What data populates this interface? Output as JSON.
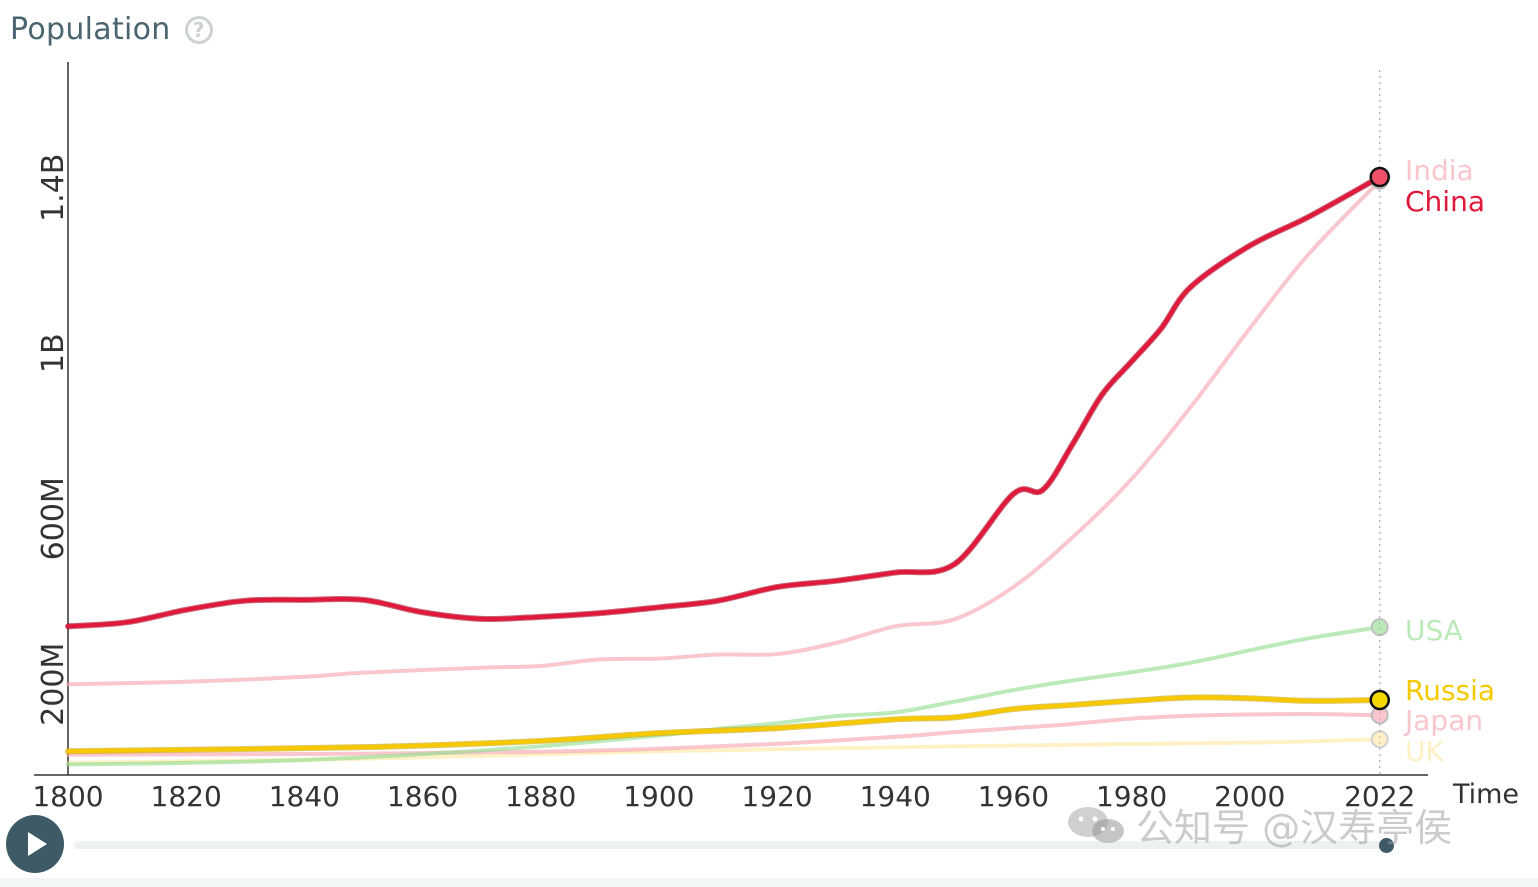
{
  "header": {
    "title": "Population",
    "help_icon": "question-circle-icon"
  },
  "chart_data": {
    "type": "line",
    "title": "Population",
    "xlabel": "Time",
    "ylabel": "",
    "xlim": [
      1800,
      2030
    ],
    "ylim": [
      0,
      1700000000
    ],
    "x_ticks": [
      1800,
      1820,
      1840,
      1860,
      1880,
      1900,
      1920,
      1940,
      1960,
      1980,
      2000
    ],
    "x_tick_last_label": "2022",
    "y_ticks": [
      {
        "value": 200000000,
        "label": "200M"
      },
      {
        "value": 600000000,
        "label": "600M"
      },
      {
        "value": 1000000000,
        "label": "1B"
      },
      {
        "value": 1400000000,
        "label": "1.4B"
      }
    ],
    "grid": false,
    "legend": "end-labels",
    "current_year": 2022,
    "series": [
      {
        "name": "UK",
        "color": "#ffdf80",
        "opacity": 0.45,
        "highlight": false,
        "points": [
          [
            1800,
            10000000
          ],
          [
            1850,
            20000000
          ],
          [
            1900,
            38000000
          ],
          [
            1950,
            50000000
          ],
          [
            2000,
            59000000
          ],
          [
            2022,
            67000000
          ]
        ]
      },
      {
        "name": "Japan",
        "color": "#f7a9b4",
        "opacity": 0.65,
        "highlight": false,
        "points": [
          [
            1800,
            30000000
          ],
          [
            1850,
            32000000
          ],
          [
            1880,
            37000000
          ],
          [
            1900,
            44000000
          ],
          [
            1920,
            56000000
          ],
          [
            1940,
            73000000
          ],
          [
            1950,
            84000000
          ],
          [
            1960,
            94000000
          ],
          [
            1970,
            104000000
          ],
          [
            1980,
            117000000
          ],
          [
            1990,
            124000000
          ],
          [
            2000,
            127000000
          ],
          [
            2010,
            128000000
          ],
          [
            2022,
            125000000
          ]
        ]
      },
      {
        "name": "USA",
        "color": "#8fdc8a",
        "opacity": 0.6,
        "highlight": false,
        "points": [
          [
            1800,
            6000000
          ],
          [
            1820,
            10000000
          ],
          [
            1840,
            17000000
          ],
          [
            1860,
            31000000
          ],
          [
            1880,
            50000000
          ],
          [
            1900,
            76000000
          ],
          [
            1910,
            92000000
          ],
          [
            1920,
            106000000
          ],
          [
            1930,
            123000000
          ],
          [
            1940,
            132000000
          ],
          [
            1950,
            158000000
          ],
          [
            1960,
            186000000
          ],
          [
            1970,
            209000000
          ],
          [
            1980,
            229000000
          ],
          [
            1990,
            252000000
          ],
          [
            2000,
            282000000
          ],
          [
            2010,
            311000000
          ],
          [
            2022,
            338000000
          ]
        ]
      },
      {
        "name": "India",
        "color": "#f7a9b4",
        "opacity": 0.65,
        "highlight": false,
        "points": [
          [
            1800,
            200000000
          ],
          [
            1820,
            206000000
          ],
          [
            1840,
            218000000
          ],
          [
            1850,
            228000000
          ],
          [
            1870,
            240000000
          ],
          [
            1880,
            244000000
          ],
          [
            1890,
            260000000
          ],
          [
            1900,
            262000000
          ],
          [
            1910,
            272000000
          ],
          [
            1920,
            273000000
          ],
          [
            1930,
            300000000
          ],
          [
            1940,
            340000000
          ],
          [
            1950,
            357000000
          ],
          [
            1960,
            435000000
          ],
          [
            1970,
            555000000
          ],
          [
            1980,
            696000000
          ],
          [
            1990,
            870000000
          ],
          [
            2000,
            1060000000
          ],
          [
            2010,
            1240000000
          ],
          [
            2022,
            1417000000
          ]
        ]
      },
      {
        "name": "Russia",
        "color": "#f5c800",
        "opacity": 1,
        "highlight": true,
        "points": [
          [
            1800,
            38000000
          ],
          [
            1850,
            48000000
          ],
          [
            1880,
            63000000
          ],
          [
            1900,
            82000000
          ],
          [
            1920,
            94000000
          ],
          [
            1940,
            115000000
          ],
          [
            1950,
            120000000
          ],
          [
            1960,
            140000000
          ],
          [
            1970,
            150000000
          ],
          [
            1980,
            160000000
          ],
          [
            1990,
            168000000
          ],
          [
            2000,
            166000000
          ],
          [
            2010,
            160000000
          ],
          [
            2022,
            162000000
          ]
        ]
      },
      {
        "name": "China",
        "color": "#e0193a",
        "opacity": 1,
        "highlight": true,
        "points": [
          [
            1800,
            340000000
          ],
          [
            1810,
            350000000
          ],
          [
            1820,
            380000000
          ],
          [
            1830,
            402000000
          ],
          [
            1840,
            404000000
          ],
          [
            1850,
            404000000
          ],
          [
            1860,
            374000000
          ],
          [
            1870,
            358000000
          ],
          [
            1880,
            363000000
          ],
          [
            1890,
            372000000
          ],
          [
            1900,
            386000000
          ],
          [
            1910,
            402000000
          ],
          [
            1920,
            435000000
          ],
          [
            1930,
            450000000
          ],
          [
            1940,
            470000000
          ],
          [
            1950,
            490000000
          ],
          [
            1960,
            660000000
          ],
          [
            1965,
            670000000
          ],
          [
            1970,
            780000000
          ],
          [
            1975,
            900000000
          ],
          [
            1980,
            980000000
          ],
          [
            1985,
            1060000000
          ],
          [
            1990,
            1160000000
          ],
          [
            2000,
            1260000000
          ],
          [
            2010,
            1330000000
          ],
          [
            2022,
            1426000000
          ]
        ]
      }
    ]
  },
  "controls": {
    "play_icon": "play-icon",
    "slider_value": 2022
  },
  "watermark": {
    "text": "公知号 @汉寿亭侯",
    "logo_icon": "wechat-icon"
  }
}
